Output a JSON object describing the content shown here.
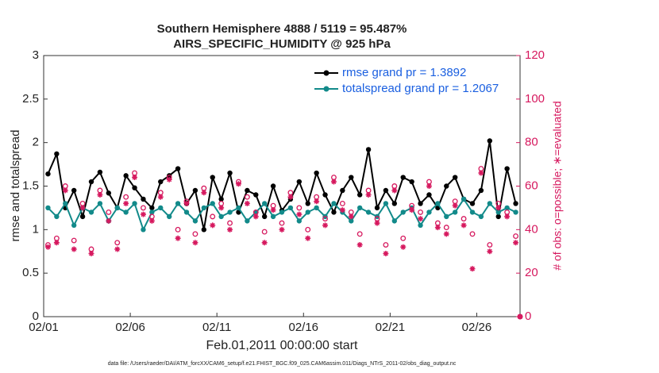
{
  "chart_data": {
    "type": "line",
    "title": "Southern Hemisphere 4888 / 5119 = 95.487%",
    "subtitle": "AIRS_SPECIFIC_HUMIDITY @ 925 hPa",
    "xlabel": "Feb.01,2011 00:00:00 start",
    "ylabel": "rmse and totalspread",
    "y2label": "# of obs: o=possible; ∗=evaluated",
    "footnote": "data file: /Users/raeder/DAI/ATM_forcXX/CAM6_setup/f.e21.FHIST_BGC.f09_025.CAM6assim.011/Diags_NTrS_2011-02/obs_diag_output.nc",
    "x": [
      0.25,
      0.75,
      1.25,
      1.75,
      2.25,
      2.75,
      3.25,
      3.75,
      4.25,
      4.75,
      5.25,
      5.75,
      6.25,
      6.75,
      7.25,
      7.75,
      8.25,
      8.75,
      9.25,
      9.75,
      10.25,
      10.75,
      11.25,
      11.75,
      12.25,
      12.75,
      13.25,
      13.75,
      14.25,
      14.75,
      15.25,
      15.75,
      16.25,
      16.75,
      17.25,
      17.75,
      18.25,
      18.75,
      19.25,
      19.75,
      20.25,
      20.75,
      21.25,
      21.75,
      22.25,
      22.75,
      23.25,
      23.75,
      24.25,
      24.75,
      25.25,
      25.75,
      26.25,
      26.75,
      27.25,
      27.5
    ],
    "xlim": [
      0,
      27.5
    ],
    "xticks": [
      {
        "value": 0,
        "label": "02/01"
      },
      {
        "value": 5,
        "label": "02/06"
      },
      {
        "value": 10,
        "label": "02/11"
      },
      {
        "value": 15,
        "label": "02/16"
      },
      {
        "value": 20,
        "label": "02/21"
      },
      {
        "value": 25,
        "label": "02/26"
      }
    ],
    "ylim": [
      0,
      3
    ],
    "yticks": [
      0,
      0.5,
      1,
      1.5,
      2,
      2.5,
      3
    ],
    "y2lim": [
      0,
      120
    ],
    "y2ticks": [
      0,
      20,
      40,
      60,
      80,
      100,
      120
    ],
    "legend": "northeast",
    "series": [
      {
        "name": "rmse grand pr = 1.3892",
        "color": "#000000",
        "marker": "dot",
        "values": [
          1.64,
          1.87,
          1.25,
          1.45,
          1.15,
          1.55,
          1.66,
          1.42,
          1.25,
          1.62,
          1.48,
          1.35,
          1.25,
          1.55,
          1.62,
          1.7,
          1.3,
          1.45,
          1.0,
          1.6,
          1.35,
          1.65,
          1.2,
          1.45,
          1.4,
          1.15,
          1.5,
          1.22,
          1.35,
          1.55,
          1.3,
          1.65,
          1.4,
          1.2,
          1.45,
          1.6,
          1.4,
          1.92,
          1.25,
          1.45,
          1.3,
          1.6,
          1.55,
          1.3,
          1.4,
          1.25,
          1.5,
          1.6,
          1.35,
          1.3,
          1.45,
          2.02,
          1.15,
          1.7,
          1.3,
          null
        ]
      },
      {
        "name": "totalspread grand pr = 1.2067",
        "color": "#128a8a",
        "marker": "dot",
        "values": [
          1.25,
          1.15,
          1.3,
          1.05,
          1.25,
          1.2,
          1.3,
          1.1,
          1.25,
          1.2,
          1.3,
          1.0,
          1.2,
          1.25,
          1.15,
          1.3,
          1.2,
          1.1,
          1.25,
          1.3,
          1.15,
          1.2,
          1.25,
          1.1,
          1.2,
          1.3,
          1.15,
          1.2,
          1.25,
          1.1,
          1.2,
          1.25,
          1.15,
          1.3,
          1.2,
          1.1,
          1.25,
          1.2,
          1.15,
          1.3,
          1.1,
          1.2,
          1.25,
          1.05,
          1.2,
          1.3,
          1.15,
          1.2,
          1.35,
          1.2,
          1.15,
          1.3,
          1.2,
          1.25,
          1.2,
          null
        ]
      },
      {
        "name": "possible",
        "color": "#d6185e",
        "marker": "circle",
        "axis": "y2",
        "legend": false,
        "values": [
          33,
          36,
          60,
          35,
          52,
          31,
          58,
          48,
          34,
          55,
          66,
          50,
          46,
          57,
          64,
          40,
          53,
          38,
          59,
          46,
          52,
          43,
          62,
          55,
          48,
          39,
          51,
          43,
          57,
          50,
          40,
          55,
          45,
          64,
          52,
          48,
          38,
          58,
          45,
          33,
          60,
          36,
          51,
          48,
          62,
          43,
          41,
          53,
          45,
          38,
          68,
          33,
          52,
          48,
          37,
          0
        ]
      },
      {
        "name": "evaluated",
        "color": "#d6185e",
        "marker": "star",
        "axis": "y2",
        "legend": false,
        "values": [
          32,
          34,
          58,
          31,
          50,
          29,
          56,
          44,
          31,
          52,
          64,
          47,
          44,
          55,
          63,
          36,
          52,
          34,
          57,
          42,
          50,
          40,
          61,
          52,
          46,
          34,
          49,
          40,
          55,
          47,
          36,
          53,
          42,
          62,
          49,
          46,
          33,
          56,
          43,
          29,
          58,
          32,
          49,
          45,
          60,
          41,
          38,
          51,
          42,
          22,
          66,
          30,
          50,
          46,
          34,
          0
        ]
      }
    ]
  }
}
